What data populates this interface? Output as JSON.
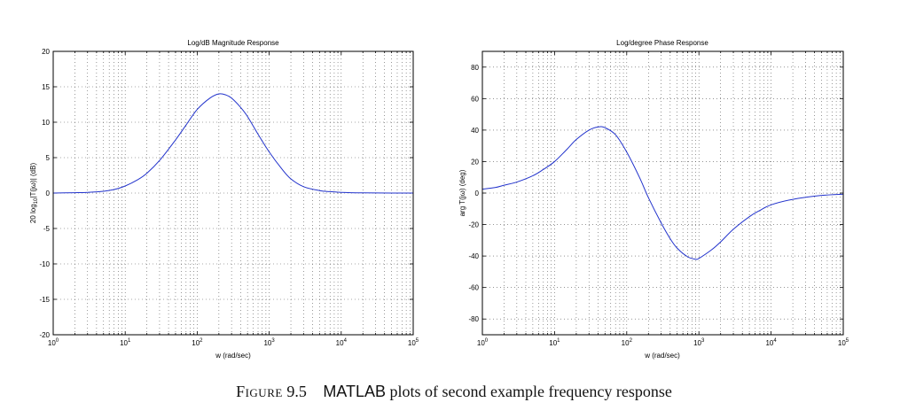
{
  "chart_data": [
    {
      "type": "line",
      "title": "Log/dB Magnitude Response",
      "xlabel": "w (rad/sec)",
      "ylabel": "20 log10|T(jω)| (dB)",
      "ylabel_parts": {
        "pre": "20 log",
        "sub": "10",
        "post": "|T(jω)| (dB)"
      },
      "xscale": "log",
      "xlim": [
        1,
        100000
      ],
      "ylim": [
        -20,
        20
      ],
      "xticks": [
        {
          "base": "10",
          "exp": "0"
        },
        {
          "base": "10",
          "exp": "1"
        },
        {
          "base": "10",
          "exp": "2"
        },
        {
          "base": "10",
          "exp": "3"
        },
        {
          "base": "10",
          "exp": "4"
        },
        {
          "base": "10",
          "exp": "5"
        }
      ],
      "yticks": [
        "-20",
        "-15",
        "-10",
        "-5",
        "0",
        "5",
        "10",
        "15",
        "20"
      ],
      "grid": "dotted",
      "line_color": "#2233cc",
      "series": [
        {
          "name": "magnitude",
          "x": [
            1,
            2,
            3,
            5,
            7,
            10,
            15,
            20,
            30,
            50,
            70,
            100,
            150,
            200,
            250,
            300,
            400,
            500,
            700,
            1000,
            1500,
            2000,
            3000,
            5000,
            7000,
            10000,
            20000,
            50000,
            100000
          ],
          "y": [
            0.0,
            0.05,
            0.1,
            0.25,
            0.5,
            1.0,
            1.9,
            2.8,
            4.6,
            7.5,
            9.6,
            11.8,
            13.4,
            14.0,
            13.85,
            13.4,
            12.1,
            10.8,
            8.3,
            5.8,
            3.4,
            2.0,
            0.9,
            0.35,
            0.2,
            0.1,
            0.03,
            0.0,
            0.0
          ]
        }
      ]
    },
    {
      "type": "line",
      "title": "Log/degree Phase Response",
      "xlabel": "w (rad/sec)",
      "ylabel": "arg T(jω) (deg)",
      "xscale": "log",
      "xlim": [
        1,
        100000
      ],
      "ylim": [
        -90,
        90
      ],
      "xticks": [
        {
          "base": "10",
          "exp": "0"
        },
        {
          "base": "10",
          "exp": "1"
        },
        {
          "base": "10",
          "exp": "2"
        },
        {
          "base": "10",
          "exp": "3"
        },
        {
          "base": "10",
          "exp": "4"
        },
        {
          "base": "10",
          "exp": "5"
        }
      ],
      "yticks": [
        "-80",
        "-60",
        "-40",
        "-20",
        "0",
        "20",
        "40",
        "60",
        "80"
      ],
      "grid": "dotted",
      "line_color": "#2233cc",
      "series": [
        {
          "name": "phase",
          "x": [
            1,
            1.5,
            2,
            3,
            5,
            7,
            10,
            15,
            20,
            30,
            40,
            50,
            70,
            100,
            150,
            200,
            300,
            400,
            500,
            700,
            900,
            1000,
            1500,
            2000,
            3000,
            5000,
            7000,
            10000,
            20000,
            50000,
            100000
          ],
          "y": [
            2.5,
            3.5,
            5,
            7,
            11,
            15,
            20,
            28,
            34,
            40,
            42,
            41.5,
            37,
            26,
            10,
            -3,
            -19,
            -29,
            -35,
            -40.5,
            -42,
            -41.5,
            -36,
            -31,
            -23,
            -15,
            -11,
            -7.5,
            -4,
            -1.5,
            -0.7
          ]
        }
      ]
    }
  ],
  "caption": {
    "figure_label": "Figure",
    "figure_number": "9.5",
    "matlab_word": "MATLAB",
    "rest": " plots of second example frequency response"
  }
}
